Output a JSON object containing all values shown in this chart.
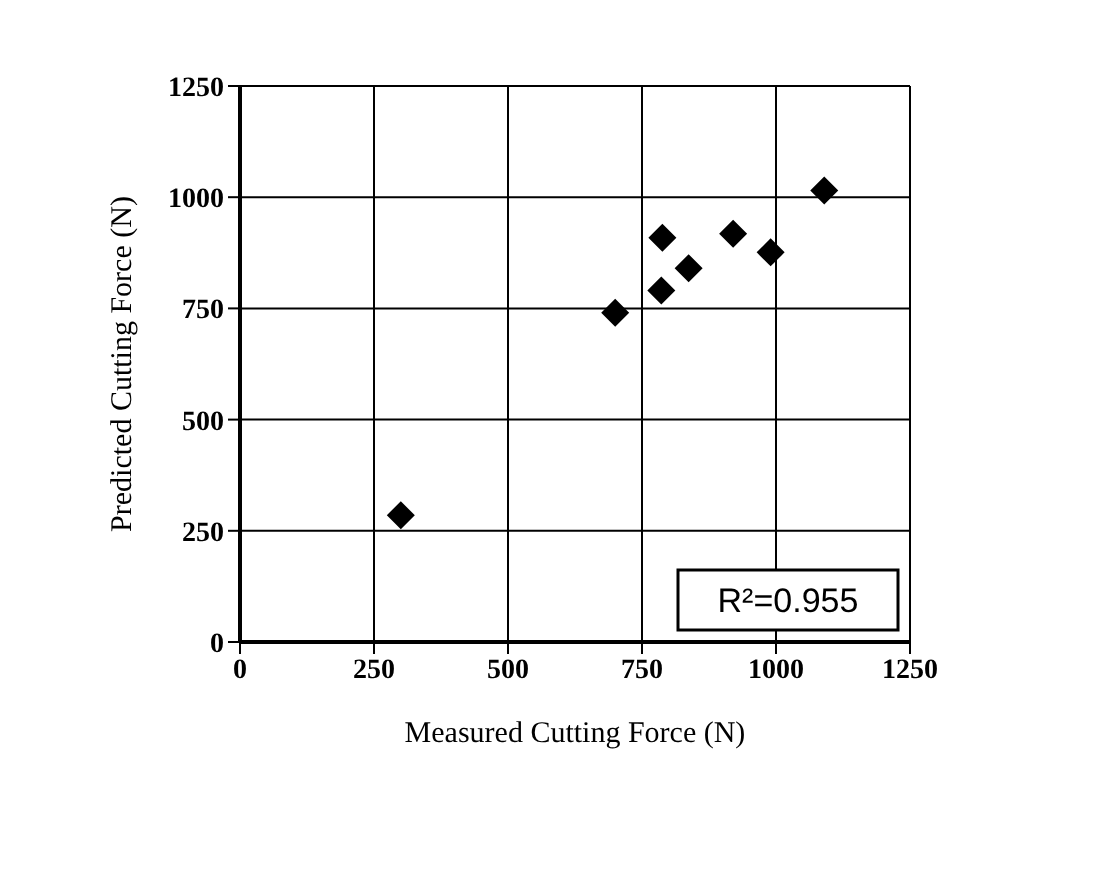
{
  "chart_data": {
    "type": "scatter",
    "xlabel": "Measured Cutting Force (N)",
    "ylabel": "Predicted Cutting Force (N)",
    "x": [
      300,
      700,
      788,
      786,
      837,
      920,
      990,
      1090
    ],
    "values": [
      285,
      740,
      909,
      790,
      840,
      918,
      876,
      1015
    ],
    "color": "#000000",
    "marker": "diamond",
    "xlim": [
      0,
      1250
    ],
    "xticks": [
      0,
      250,
      500,
      750,
      1000,
      1250
    ],
    "ylim": [
      0,
      1250
    ],
    "yticks": [
      0,
      250,
      500,
      750,
      1000,
      1250
    ],
    "grid": true,
    "annotations": [
      "R²=0.955"
    ]
  }
}
